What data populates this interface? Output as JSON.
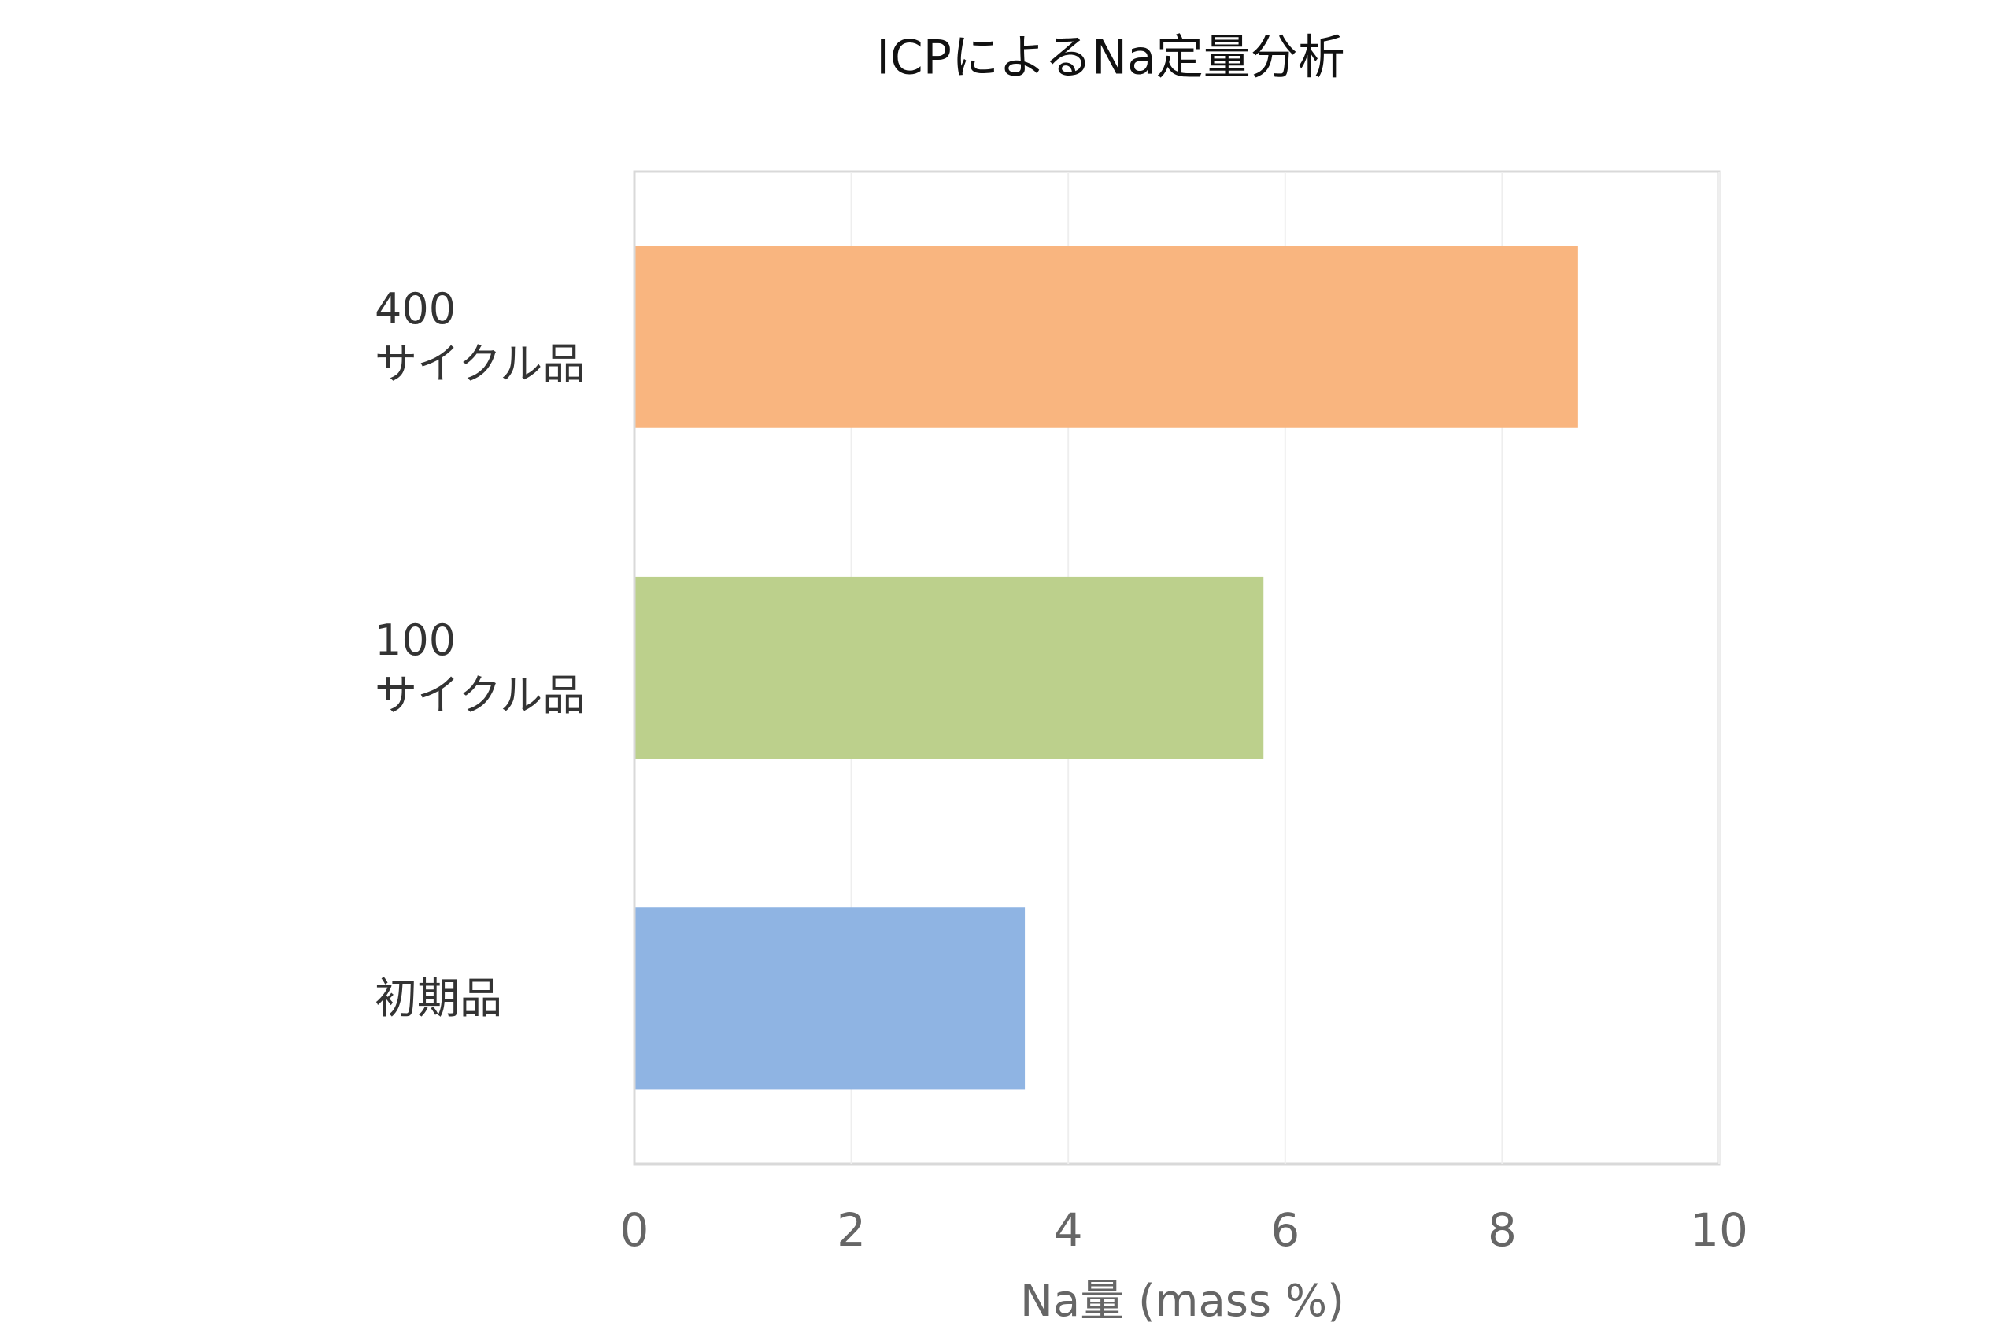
{
  "chart_data": {
    "type": "barh",
    "title": "ICPによるNa定量分析",
    "categories": [
      "400\nサイクル品",
      "100\nサイクル品",
      "初期品"
    ],
    "values": [
      8.7,
      5.8,
      3.6
    ],
    "colors": [
      "#f9b57f",
      "#bcd08c",
      "#8fb4e3"
    ],
    "x_label": "Na量 (mass %)",
    "xlim": [
      0,
      10
    ],
    "xticks": [
      0,
      2,
      4,
      6,
      8,
      10
    ],
    "grid": true
  }
}
